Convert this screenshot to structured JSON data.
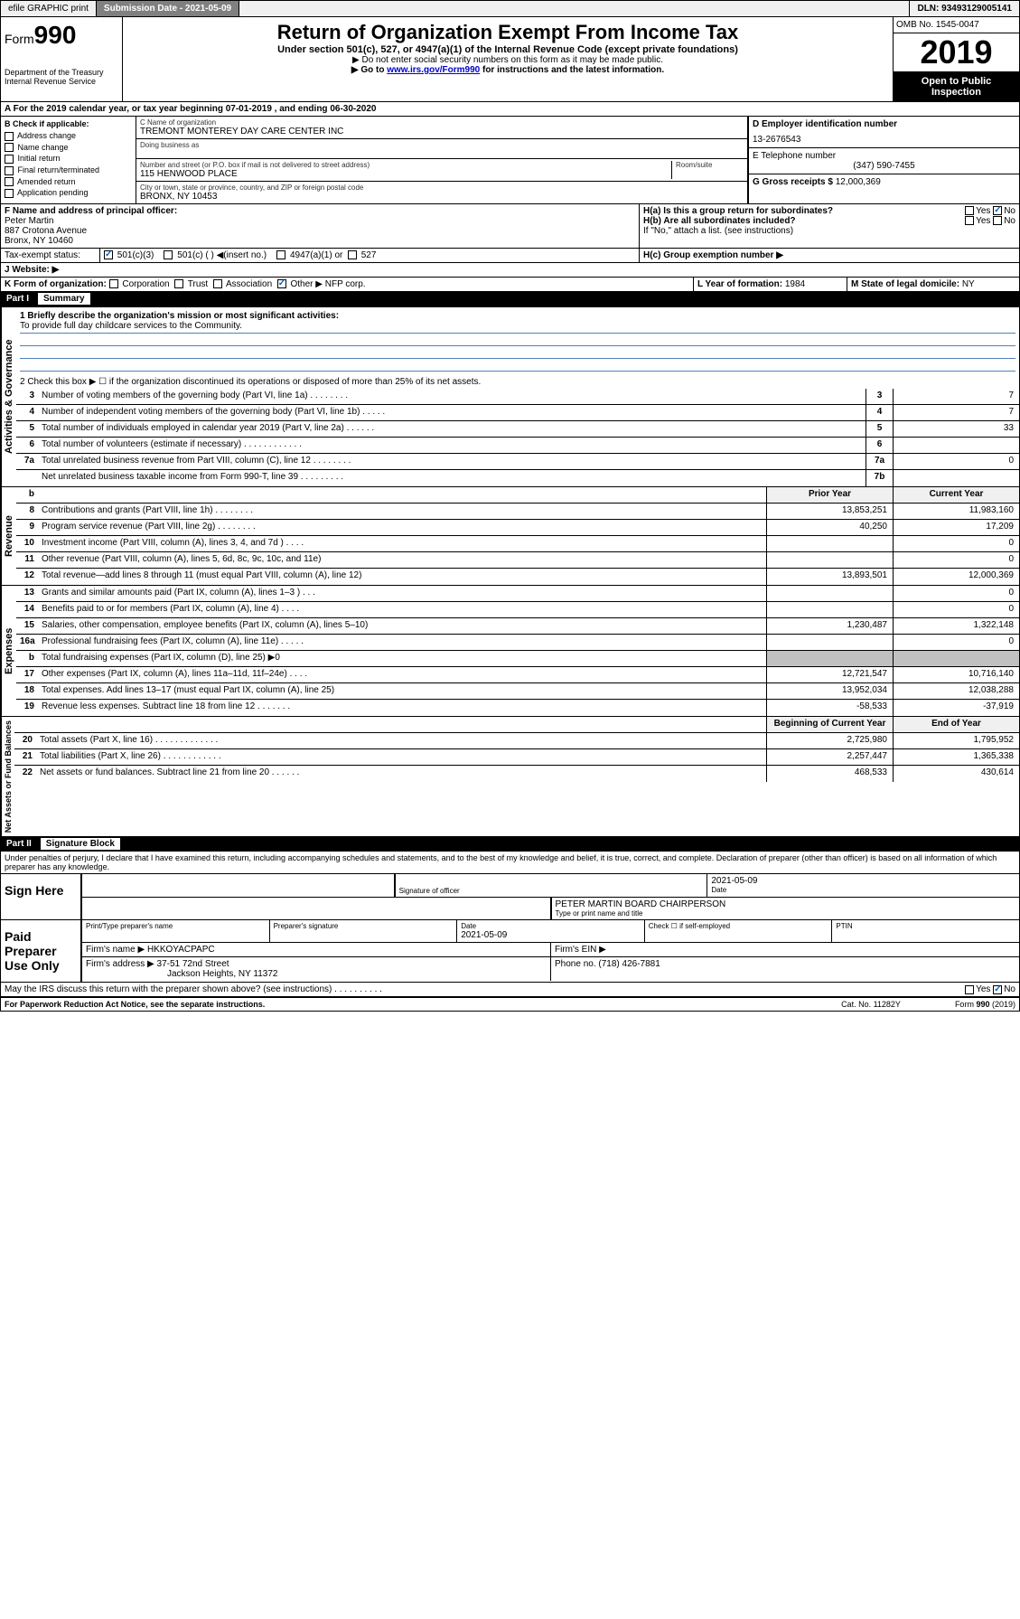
{
  "topbar": {
    "efile": "efile GRAPHIC print",
    "submission_label": "Submission Date - 2021-05-09",
    "dln": "DLN: 93493129005141"
  },
  "header": {
    "form_prefix": "Form",
    "form_num": "990",
    "dept": "Department of the Treasury\nInternal Revenue Service",
    "title": "Return of Organization Exempt From Income Tax",
    "subtitle": "Under section 501(c), 527, or 4947(a)(1) of the Internal Revenue Code (except private foundations)",
    "note1": "▶ Do not enter social security numbers on this form as it may be made public.",
    "note2_pre": "▶ Go to ",
    "note2_link": "www.irs.gov/Form990",
    "note2_post": " for instructions and the latest information.",
    "omb": "OMB No. 1545-0047",
    "year": "2019",
    "open": "Open to Public Inspection"
  },
  "section_a": "A For the 2019 calendar year, or tax year beginning 07-01-2019    , and ending 06-30-2020",
  "section_b": {
    "label": "B Check if applicable:",
    "items": [
      "Address change",
      "Name change",
      "Initial return",
      "Final return/terminated",
      "Amended return",
      "Application pending"
    ]
  },
  "section_c": {
    "name_label": "C Name of organization",
    "name": "TREMONT MONTEREY DAY CARE CENTER INC",
    "dba_label": "Doing business as",
    "addr_label": "Number and street (or P.O. box if mail is not delivered to street address)",
    "addr": "115 HENWOOD PLACE",
    "room_label": "Room/suite",
    "city_label": "City or town, state or province, country, and ZIP or foreign postal code",
    "city": "BRONX, NY  10453"
  },
  "section_d": {
    "label": "D Employer identification number",
    "value": "13-2676543"
  },
  "section_e": {
    "label": "E Telephone number",
    "value": "(347) 590-7455"
  },
  "section_g": {
    "label": "G Gross receipts $",
    "value": "12,000,369"
  },
  "section_f": {
    "label": "F  Name and address of principal officer:",
    "name": "Peter Martin",
    "addr1": "887 Crotona Avenue",
    "addr2": "Bronx, NY  10460"
  },
  "section_h": {
    "ha": "H(a)  Is this a group return for subordinates?",
    "hb": "H(b)  Are all subordinates included?",
    "hb_note": "If \"No,\" attach a list. (see instructions)",
    "hc": "H(c)  Group exemption number ▶"
  },
  "section_i": {
    "label": "Tax-exempt status:",
    "opt1": "501(c)(3)",
    "opt2": "501(c) (  ) ◀(insert no.)",
    "opt3": "4947(a)(1) or",
    "opt4": "527"
  },
  "section_j": {
    "label": "J   Website: ▶"
  },
  "section_k": {
    "label": "K Form of organization:",
    "opts": [
      "Corporation",
      "Trust",
      "Association",
      "Other ▶"
    ],
    "other_val": "NFP corp."
  },
  "section_l": {
    "label": "L Year of formation:",
    "value": "1984"
  },
  "section_m": {
    "label": "M State of legal domicile:",
    "value": "NY"
  },
  "part1": {
    "header": "Part I",
    "title": "Summary",
    "line1_label": "1  Briefly describe the organization's mission or most significant activities:",
    "line1_text": "To provide full day childcare services to the Community.",
    "line2": "2    Check this box ▶ ☐  if the organization discontinued its operations or disposed of more than 25% of its net assets.",
    "rows_top": [
      {
        "n": "3",
        "label": "Number of voting members of the governing body (Part VI, line 1a)  .   .   .   .   .   .   .   .",
        "box": "3",
        "val": "7"
      },
      {
        "n": "4",
        "label": "Number of independent voting members of the governing body (Part VI, line 1b)   .   .   .   .   .",
        "box": "4",
        "val": "7"
      },
      {
        "n": "5",
        "label": "Total number of individuals employed in calendar year 2019 (Part V, line 2a)   .   .   .   .   .   .",
        "box": "5",
        "val": "33"
      },
      {
        "n": "6",
        "label": "Total number of volunteers (estimate if necessary)   .   .   .   .   .   .   .   .   .   .   .   .",
        "box": "6",
        "val": ""
      },
      {
        "n": "7a",
        "label": "Total unrelated business revenue from Part VIII, column (C), line 12   .   .   .   .   .   .   .   .",
        "box": "7a",
        "val": "0"
      },
      {
        "n": "",
        "label": "Net unrelated business taxable income from Form 990-T, line 39   .   .   .   .   .   .   .   .   .",
        "box": "7b",
        "val": ""
      }
    ],
    "col_headers": {
      "b": "b",
      "prior": "Prior Year",
      "current": "Current Year"
    },
    "revenue_rows": [
      {
        "n": "8",
        "label": "Contributions and grants (Part VIII, line 1h)   .   .   .   .   .   .   .   .",
        "prior": "13,853,251",
        "current": "11,983,160"
      },
      {
        "n": "9",
        "label": "Program service revenue (Part VIII, line 2g)   .   .   .   .   .   .   .   .",
        "prior": "40,250",
        "current": "17,209"
      },
      {
        "n": "10",
        "label": "Investment income (Part VIII, column (A), lines 3, 4, and 7d )   .   .   .   .",
        "prior": "",
        "current": "0"
      },
      {
        "n": "11",
        "label": "Other revenue (Part VIII, column (A), lines 5, 6d, 8c, 9c, 10c, and 11e)",
        "prior": "",
        "current": "0"
      },
      {
        "n": "12",
        "label": "Total revenue—add lines 8 through 11 (must equal Part VIII, column (A), line 12)",
        "prior": "13,893,501",
        "current": "12,000,369"
      }
    ],
    "expense_rows": [
      {
        "n": "13",
        "label": "Grants and similar amounts paid (Part IX, column (A), lines 1–3 )   .   .   .",
        "prior": "",
        "current": "0"
      },
      {
        "n": "14",
        "label": "Benefits paid to or for members (Part IX, column (A), line 4)   .   .   .   .",
        "prior": "",
        "current": "0"
      },
      {
        "n": "15",
        "label": "Salaries, other compensation, employee benefits (Part IX, column (A), lines 5–10)",
        "prior": "1,230,487",
        "current": "1,322,148"
      },
      {
        "n": "16a",
        "label": "Professional fundraising fees (Part IX, column (A), line 11e)   .   .   .   .   .",
        "prior": "",
        "current": "0"
      },
      {
        "n": "b",
        "label": "Total fundraising expenses (Part IX, column (D), line 25) ▶0",
        "prior": "GRAY",
        "current": "GRAY"
      },
      {
        "n": "17",
        "label": "Other expenses (Part IX, column (A), lines 11a–11d, 11f–24e)   .   .   .   .",
        "prior": "12,721,547",
        "current": "10,716,140"
      },
      {
        "n": "18",
        "label": "Total expenses. Add lines 13–17 (must equal Part IX, column (A), line 25)",
        "prior": "13,952,034",
        "current": "12,038,288"
      },
      {
        "n": "19",
        "label": "Revenue less expenses. Subtract line 18 from line 12   .   .   .   .   .   .   .",
        "prior": "-58,533",
        "current": "-37,919"
      }
    ],
    "net_headers": {
      "begin": "Beginning of Current Year",
      "end": "End of Year"
    },
    "net_rows": [
      {
        "n": "20",
        "label": "Total assets (Part X, line 16)   .   .   .   .   .   .   .   .   .   .   .   .   .",
        "prior": "2,725,980",
        "current": "1,795,952"
      },
      {
        "n": "21",
        "label": "Total liabilities (Part X, line 26)   .   .   .   .   .   .   .   .   .   .   .   .",
        "prior": "2,257,447",
        "current": "1,365,338"
      },
      {
        "n": "22",
        "label": "Net assets or fund balances. Subtract line 21 from line 20   .   .   .   .   .   .",
        "prior": "468,533",
        "current": "430,614"
      }
    ],
    "vlabels": {
      "gov": "Activities & Governance",
      "rev": "Revenue",
      "exp": "Expenses",
      "net": "Net Assets or Fund Balances"
    }
  },
  "part2": {
    "header": "Part II",
    "title": "Signature Block",
    "declaration": "Under penalties of perjury, I declare that I have examined this return, including accompanying schedules and statements, and to the best of my knowledge and belief, it is true, correct, and complete. Declaration of preparer (other than officer) is based on all information of which preparer has any knowledge."
  },
  "sign": {
    "here": "Sign Here",
    "sig_label": "Signature of officer",
    "date": "2021-05-09",
    "date_label": "Date",
    "name": "PETER MARTIN  BOARD CHAIRPERSON",
    "name_label": "Type or print name and title"
  },
  "paid": {
    "label": "Paid Preparer Use Only",
    "h1": "Print/Type preparer's name",
    "h2": "Preparer's signature",
    "h3": "Date",
    "date": "2021-05-09",
    "h4": "Check ☐ if self-employed",
    "h5": "PTIN",
    "firm_name_label": "Firm's name    ▶",
    "firm_name": "HKKOYACPAPC",
    "firm_ein_label": "Firm's EIN ▶",
    "firm_addr_label": "Firm's address ▶",
    "firm_addr1": "37-51 72nd Street",
    "firm_addr2": "Jackson Heights, NY  11372",
    "phone_label": "Phone no.",
    "phone": "(718) 426-7881"
  },
  "discuss": "May the IRS discuss this return with the preparer shown above? (see instructions)   .   .   .   .   .   .   .   .   .   .",
  "footer": {
    "left": "For Paperwork Reduction Act Notice, see the separate instructions.",
    "cat": "Cat. No. 11282Y",
    "form": "Form 990 (2019)"
  },
  "yes": "Yes",
  "no": "No"
}
